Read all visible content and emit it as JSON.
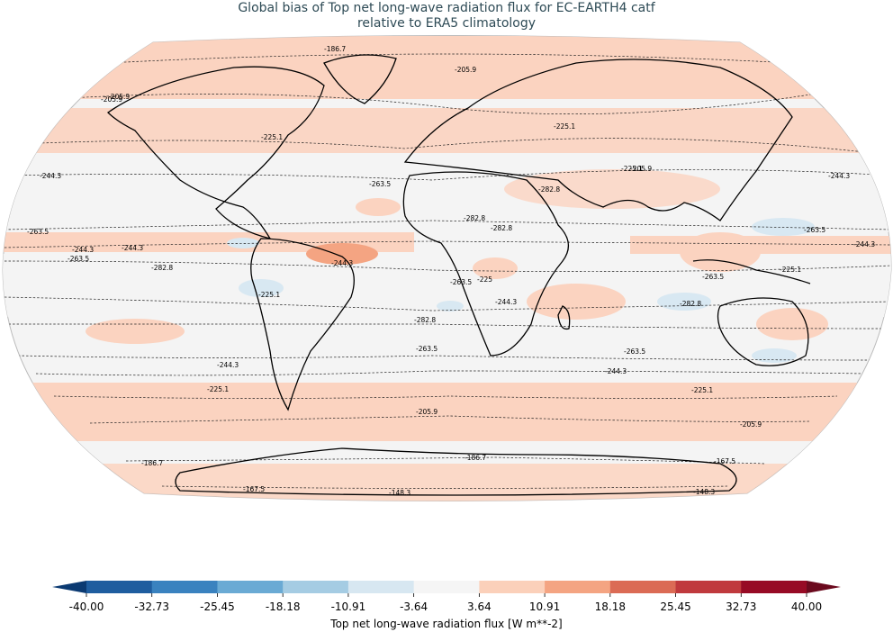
{
  "title_line1": "Global bias of Top net long-wave radiation flux for EC-EARTH4 catf",
  "title_line2": "relative to ERA5 climatology",
  "contour_labels": [
    "-186.7",
    "-205.9",
    "-205.9",
    "-225.1",
    "-225.1",
    "-244.3",
    "-244.3",
    "-263.5",
    "-263.5",
    "-263.5",
    "-244.3",
    "-263.5",
    "-244.3",
    "-244.3",
    "-282.8",
    "-282.8",
    "-282.8",
    "-282.8",
    "-225",
    "-263.5",
    "-244.3",
    "-225.1",
    "-263.5",
    "-282.8",
    "-263.5",
    "-225.1",
    "-263.5",
    "-282.8",
    "-244.3",
    "-225.1",
    "-205.9",
    "-244.3",
    "-225.1",
    "-205.9",
    "-186.7",
    "-167.5",
    "-186.7",
    "-167.5",
    "-148.3",
    "-148.3",
    "-205.9",
    "-244.3",
    "-225.1",
    "-205.9"
  ],
  "colorbar": {
    "label": "Top net long-wave radiation flux [W m**-2]",
    "ticks": [
      "-40.00",
      "-32.73",
      "-25.45",
      "-18.18",
      "-10.91",
      "-3.64",
      "3.64",
      "10.91",
      "18.18",
      "25.45",
      "32.73",
      "40.00"
    ],
    "colors": [
      "#1f5d9f",
      "#3a82bf",
      "#6aaad4",
      "#a5cce3",
      "#d7e7f1",
      "#f5f5f5",
      "#fbd0ba",
      "#f4a482",
      "#db6b55",
      "#c03a3d",
      "#970b25"
    ],
    "extend_low_color": "#0b3a72",
    "extend_high_color": "#6b0a1e"
  },
  "colors": {
    "ocean_neutral": "#f4f4f4",
    "positive_bias": "#fbd3c0",
    "negative_bias": "#d8e8f2",
    "coastline": "#000000",
    "title": "#2d4a55"
  }
}
